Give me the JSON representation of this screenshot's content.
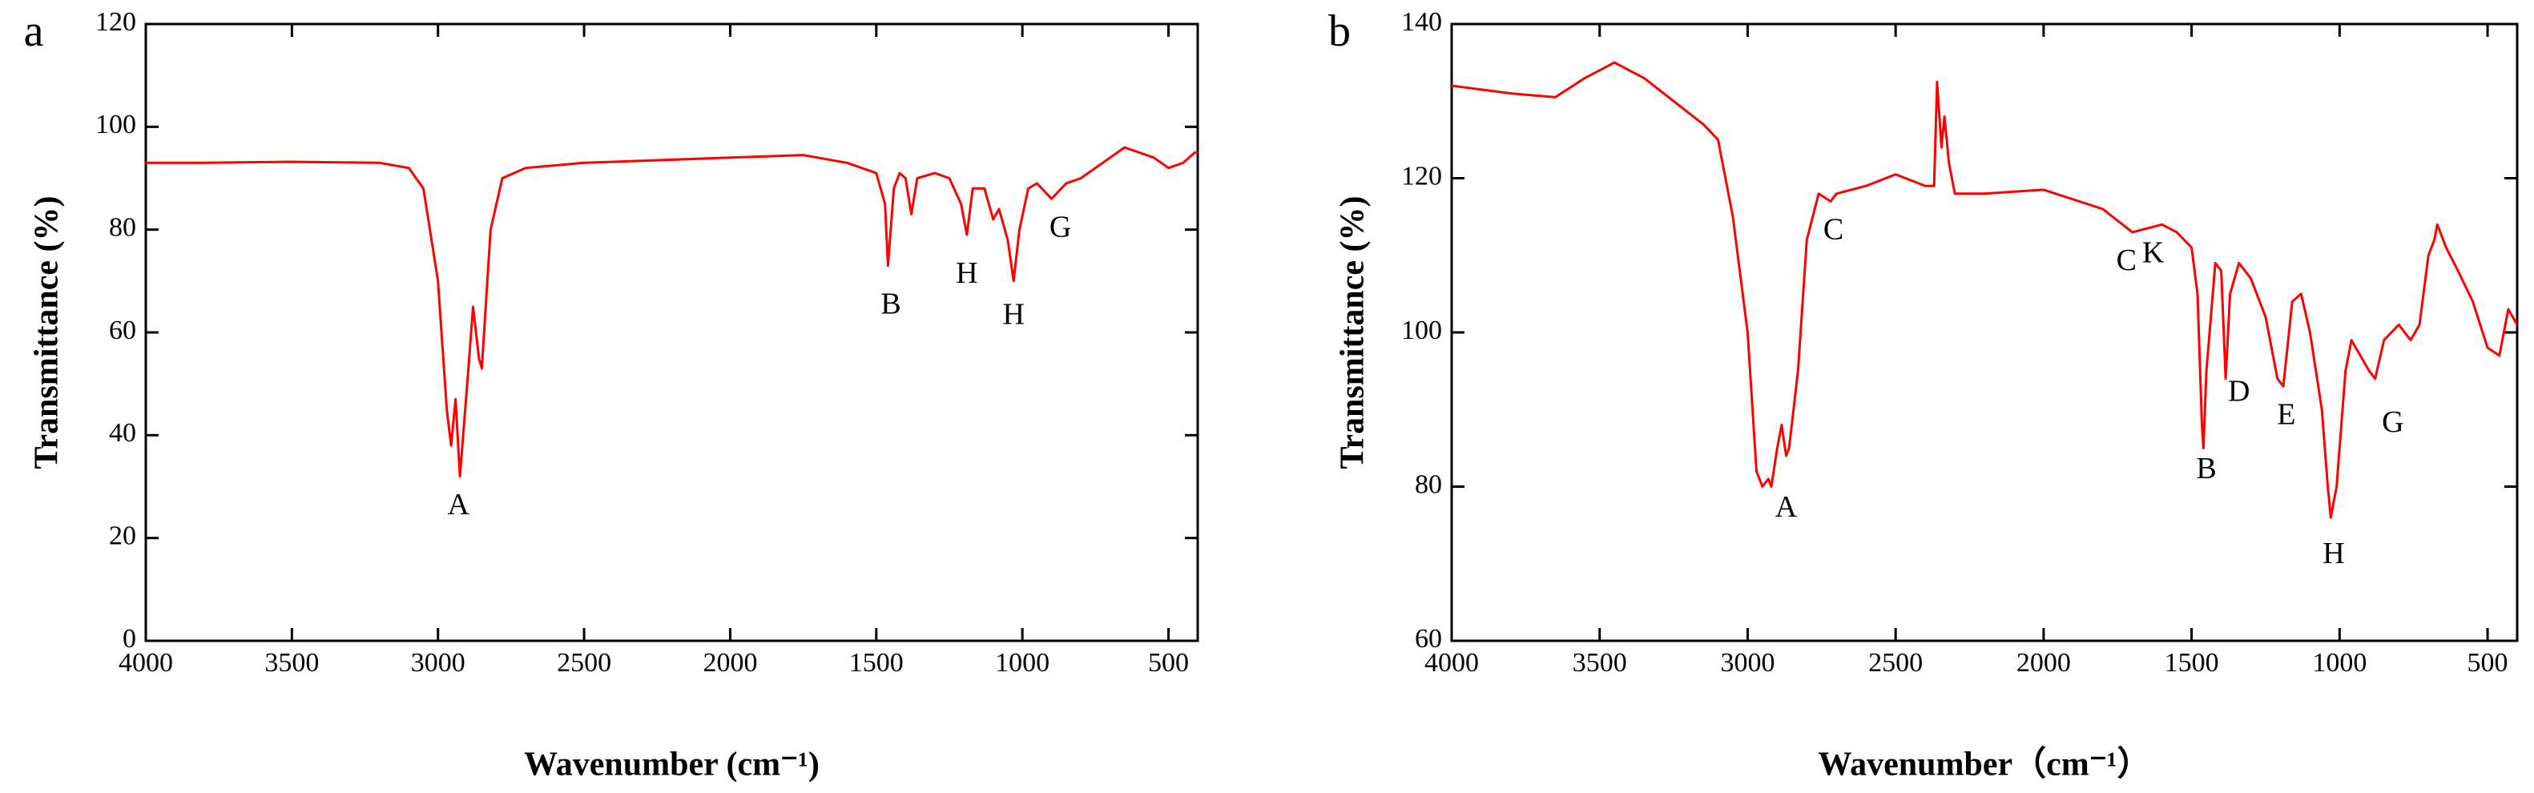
{
  "chart_data": [
    {
      "type": "line",
      "panel_label": "a",
      "x_label": "Wavenumber (cm⁻¹)",
      "y_label": "Transmittance (%)",
      "xlim": [
        4000,
        400
      ],
      "ylim": [
        0,
        120
      ],
      "xticks": [
        4000,
        3500,
        3000,
        2500,
        2000,
        1500,
        1000,
        500
      ],
      "yticks": [
        0,
        20,
        40,
        60,
        80,
        100,
        120
      ],
      "series": [
        {
          "color": "#ff0000",
          "x": [
            4000,
            3800,
            3500,
            3200,
            3100,
            3050,
            3000,
            2970,
            2955,
            2940,
            2925,
            2900,
            2880,
            2860,
            2850,
            2820,
            2780,
            2700,
            2500,
            2000,
            1750,
            1600,
            1500,
            1470,
            1460,
            1440,
            1420,
            1400,
            1380,
            1360,
            1300,
            1250,
            1210,
            1190,
            1170,
            1130,
            1100,
            1080,
            1050,
            1030,
            1010,
            980,
            950,
            900,
            850,
            800,
            700,
            650,
            550,
            500,
            450,
            410,
            400
          ],
          "values": [
            93,
            93,
            93.2,
            93,
            92,
            88,
            70,
            45,
            38,
            47,
            32,
            50,
            65,
            55,
            53,
            80,
            90,
            92,
            93,
            94,
            94.5,
            93,
            91,
            85,
            73,
            88,
            91,
            90,
            83,
            90,
            91,
            90,
            85,
            79,
            88,
            88,
            82,
            84,
            78,
            70,
            80,
            88,
            89,
            86,
            89,
            90,
            94,
            96,
            94,
            92,
            93,
            95,
            95
          ]
        }
      ],
      "annotations": [
        {
          "text": "A",
          "x": 2930,
          "y": 26
        },
        {
          "text": "B",
          "x": 1450,
          "y": 65
        },
        {
          "text": "H",
          "x": 1190,
          "y": 71
        },
        {
          "text": "H",
          "x": 1030,
          "y": 63
        },
        {
          "text": "G",
          "x": 870,
          "y": 80
        }
      ]
    },
    {
      "type": "line",
      "panel_label": "b",
      "x_label": "Wavenumber（cm⁻¹）",
      "y_label": "Transmittance (%)",
      "xlim": [
        4000,
        400
      ],
      "ylim": [
        60,
        140
      ],
      "xticks": [
        4000,
        3500,
        3000,
        2500,
        2000,
        1500,
        1000,
        500
      ],
      "yticks": [
        60,
        80,
        100,
        120,
        140
      ],
      "series": [
        {
          "color": "#ff0000",
          "x": [
            4000,
            3800,
            3650,
            3550,
            3450,
            3350,
            3250,
            3150,
            3100,
            3050,
            3000,
            2970,
            2950,
            2930,
            2920,
            2900,
            2885,
            2870,
            2860,
            2830,
            2800,
            2760,
            2720,
            2700,
            2600,
            2500,
            2400,
            2370,
            2360,
            2345,
            2335,
            2320,
            2300,
            2200,
            2000,
            1800,
            1700,
            1600,
            1550,
            1500,
            1480,
            1465,
            1460,
            1450,
            1420,
            1400,
            1385,
            1370,
            1340,
            1300,
            1250,
            1210,
            1190,
            1160,
            1130,
            1100,
            1060,
            1040,
            1030,
            1010,
            980,
            960,
            900,
            880,
            850,
            800,
            760,
            730,
            700,
            680,
            670,
            640,
            600,
            550,
            500,
            460,
            430,
            400
          ],
          "values": [
            132,
            131,
            130.5,
            133,
            135,
            133,
            130,
            127,
            125,
            115,
            100,
            82,
            80,
            81,
            80,
            85,
            88,
            84,
            85,
            95,
            112,
            118,
            117,
            118,
            119,
            120.5,
            119,
            119,
            132.5,
            124,
            128,
            122,
            118,
            118,
            118.5,
            116,
            113,
            114,
            113,
            111,
            105,
            88,
            85,
            95,
            109,
            108,
            94,
            105,
            109,
            107,
            102,
            94,
            93,
            104,
            105,
            100,
            90,
            80,
            76,
            80,
            95,
            99,
            95,
            94,
            99,
            101,
            99,
            101,
            110,
            112,
            114,
            111,
            108,
            104,
            98,
            97,
            103,
            101
          ]
        }
      ],
      "annotations": [
        {
          "text": "A",
          "x": 2870,
          "y": 77
        },
        {
          "text": "C",
          "x": 2710,
          "y": 113
        },
        {
          "text": "C",
          "x": 1720,
          "y": 109
        },
        {
          "text": "K",
          "x": 1630,
          "y": 110
        },
        {
          "text": "B",
          "x": 1450,
          "y": 82
        },
        {
          "text": "D",
          "x": 1340,
          "y": 92
        },
        {
          "text": "E",
          "x": 1180,
          "y": 89
        },
        {
          "text": "H",
          "x": 1020,
          "y": 71
        },
        {
          "text": "G",
          "x": 820,
          "y": 88
        }
      ]
    }
  ]
}
